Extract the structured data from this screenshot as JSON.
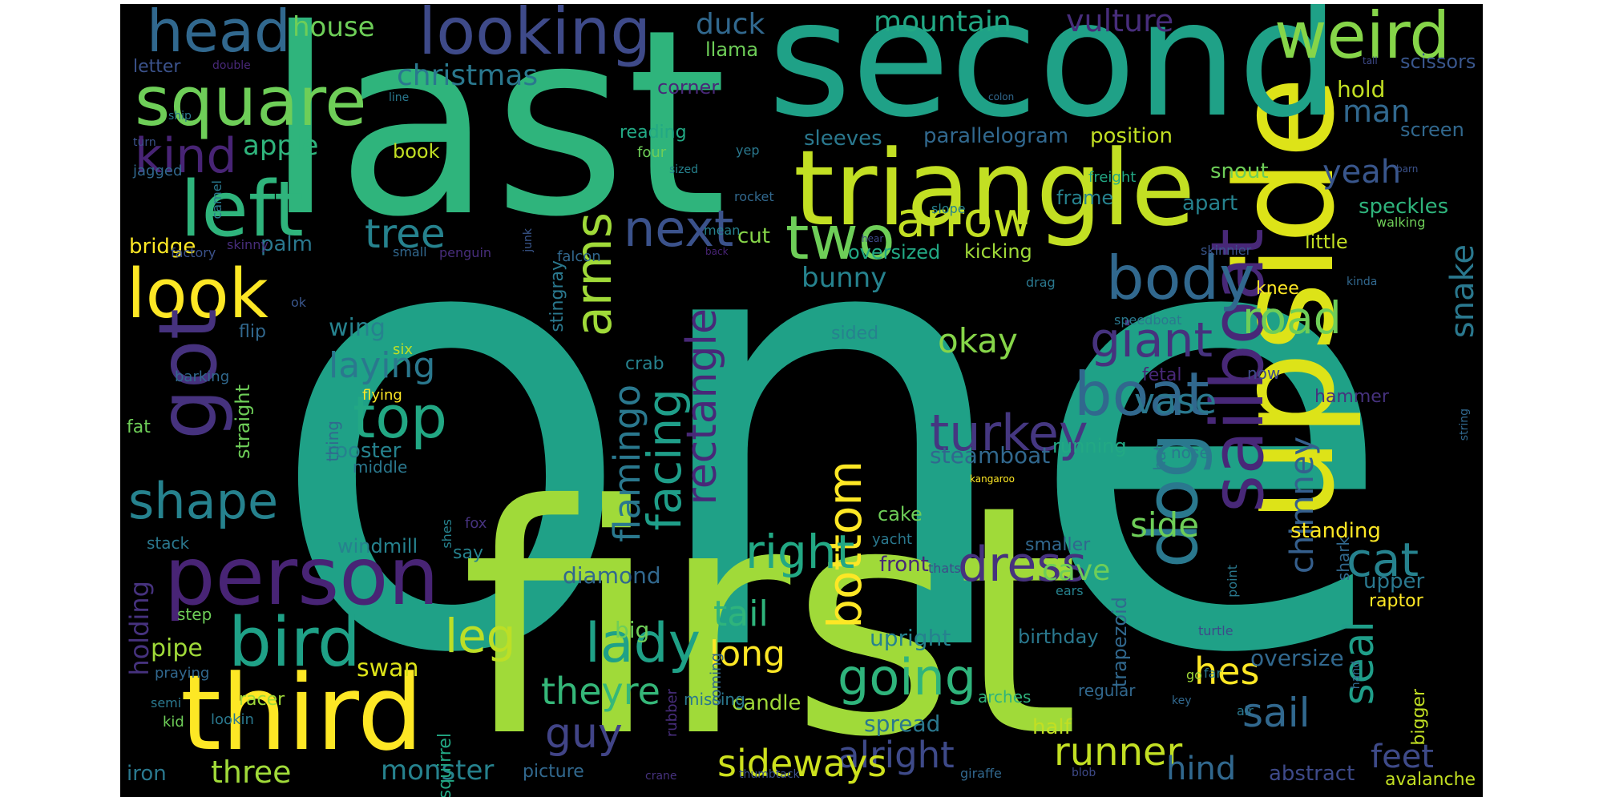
{
  "palette": {
    "background": "#000000",
    "page": "#ffffff",
    "colors": [
      "#fde725",
      "#a0da39",
      "#4ac16d",
      "#1fa187",
      "#277f8e",
      "#365c8d",
      "#46327e",
      "#440154"
    ]
  },
  "words": [
    {
      "text": "one",
      "color": "#1fa187"
    },
    {
      "text": "first",
      "color": "#a0da39"
    },
    {
      "text": "last",
      "color": "#2fb47c"
    },
    {
      "text": "upside",
      "color": "#dde318"
    },
    {
      "text": "second",
      "color": "#1fa187"
    },
    {
      "text": "triangle",
      "color": "#c2df23"
    },
    {
      "text": "third",
      "color": "#fde725"
    },
    {
      "text": "person",
      "color": "#482475"
    },
    {
      "text": "bird",
      "color": "#1fa187"
    },
    {
      "text": "left",
      "color": "#2fb47c"
    },
    {
      "text": "look",
      "color": "#fde725"
    },
    {
      "text": "square",
      "color": "#6ece58"
    },
    {
      "text": "head",
      "color": "#31688e"
    },
    {
      "text": "looking",
      "color": "#3e4a89"
    },
    {
      "text": "weird",
      "color": "#86d549"
    },
    {
      "text": "got",
      "color": "#46327e"
    },
    {
      "text": "dog",
      "color": "#2a788e"
    },
    {
      "text": "sailboat",
      "color": "#482878"
    },
    {
      "text": "boat",
      "color": "#31688e"
    },
    {
      "text": "body",
      "color": "#31688e"
    },
    {
      "text": "two",
      "color": "#6ece58"
    },
    {
      "text": "arrow",
      "color": "#c2df23"
    },
    {
      "text": "next",
      "color": "#3b528b"
    },
    {
      "text": "kind",
      "color": "#482475"
    },
    {
      "text": "shape",
      "color": "#26828e"
    },
    {
      "text": "top",
      "color": "#22a884"
    },
    {
      "text": "turkey",
      "color": "#453781"
    },
    {
      "text": "bottom",
      "color": "#fde725"
    },
    {
      "text": "right",
      "color": "#22a884"
    },
    {
      "text": "facing",
      "color": "#1f9e89"
    },
    {
      "text": "flamingo",
      "color": "#2a788e"
    },
    {
      "text": "rectangle",
      "color": "#482878"
    },
    {
      "text": "arms",
      "color": "#a0da39"
    },
    {
      "text": "dress",
      "color": "#46327e"
    },
    {
      "text": "going",
      "color": "#2fb47c"
    },
    {
      "text": "lady",
      "color": "#1fa187"
    },
    {
      "text": "leg",
      "color": "#bddf26"
    },
    {
      "text": "guy",
      "color": "#414487"
    },
    {
      "text": "cat",
      "color": "#26828e"
    },
    {
      "text": "seal",
      "color": "#1f9e89"
    },
    {
      "text": "chimney",
      "color": "#355f8d"
    },
    {
      "text": "giant",
      "color": "#46327e"
    },
    {
      "text": "road",
      "color": "#6ece58"
    },
    {
      "text": "snake",
      "color": "#2a788e"
    },
    {
      "text": "tree",
      "color": "#26828e"
    },
    {
      "text": "okay",
      "color": "#86d549"
    },
    {
      "text": "laying",
      "color": "#2a788e"
    },
    {
      "text": "runner",
      "color": "#c2df23"
    },
    {
      "text": "alright",
      "color": "#3e4a89"
    },
    {
      "text": "sideways",
      "color": "#cde11d"
    },
    {
      "text": "theyre",
      "color": "#35b779"
    },
    {
      "text": "sail",
      "color": "#31688e"
    },
    {
      "text": "hes",
      "color": "#fde725"
    },
    {
      "text": "long",
      "color": "#fde725"
    },
    {
      "text": "tail",
      "color": "#2fb47c"
    },
    {
      "text": "side",
      "color": "#6ece58"
    },
    {
      "text": "vase",
      "color": "#2a788e"
    },
    {
      "text": "feet",
      "color": "#3e4a89"
    },
    {
      "text": "hind",
      "color": "#31688e"
    },
    {
      "text": "three",
      "color": "#a0da39"
    },
    {
      "text": "monster",
      "color": "#26828e"
    },
    {
      "text": "holding",
      "color": "#46327e"
    },
    {
      "text": "christmas",
      "color": "#2a788e"
    },
    {
      "text": "mountain",
      "color": "#22a884"
    },
    {
      "text": "duck",
      "color": "#31688e"
    },
    {
      "text": "house",
      "color": "#6ece58"
    },
    {
      "text": "vulture",
      "color": "#472d7b"
    },
    {
      "text": "apple",
      "color": "#2fb47c"
    },
    {
      "text": "man",
      "color": "#31688e"
    },
    {
      "text": "yeah",
      "color": "#39568c"
    },
    {
      "text": "cave",
      "color": "#6ece58"
    },
    {
      "text": "swan",
      "color": "#dde318"
    },
    {
      "text": "pipe",
      "color": "#a0da39"
    },
    {
      "text": "bunny",
      "color": "#26828e"
    },
    {
      "text": "wing",
      "color": "#26828e"
    },
    {
      "text": "parallelogram",
      "color": "#31688e"
    },
    {
      "text": "position",
      "color": "#c2df23"
    },
    {
      "text": "sleeves",
      "color": "#2a788e"
    },
    {
      "text": "hold",
      "color": "#c2df23"
    },
    {
      "text": "llama",
      "color": "#6ece58"
    },
    {
      "text": "corner",
      "color": "#482878"
    },
    {
      "text": "letter",
      "color": "#3b528b"
    },
    {
      "text": "book",
      "color": "#c2df23"
    },
    {
      "text": "reading",
      "color": "#22a884"
    },
    {
      "text": "bridge",
      "color": "#fde725"
    },
    {
      "text": "stingray",
      "color": "#2a788e"
    },
    {
      "text": "frame",
      "color": "#26828e"
    },
    {
      "text": "speckles",
      "color": "#2fb47c"
    },
    {
      "text": "apart",
      "color": "#26828e"
    },
    {
      "text": "snout",
      "color": "#6ece58"
    },
    {
      "text": "screen",
      "color": "#31688e"
    },
    {
      "text": "scissors",
      "color": "#39568c"
    },
    {
      "text": "little",
      "color": "#c2df23"
    },
    {
      "text": "kicking",
      "color": "#a0da39"
    },
    {
      "text": "oversized",
      "color": "#22a884"
    },
    {
      "text": "cut",
      "color": "#86d549"
    },
    {
      "text": "palm",
      "color": "#2a788e"
    },
    {
      "text": "steamboat",
      "color": "#31688e"
    },
    {
      "text": "rooster",
      "color": "#26828e"
    },
    {
      "text": "diamond",
      "color": "#31688e"
    },
    {
      "text": "straight",
      "color": "#6ece58"
    },
    {
      "text": "running",
      "color": "#22a884"
    },
    {
      "text": "standing",
      "color": "#fde725"
    },
    {
      "text": "upright",
      "color": "#26828e"
    },
    {
      "text": "oversize",
      "color": "#31688e"
    },
    {
      "text": "birthday",
      "color": "#2a788e"
    },
    {
      "text": "half",
      "color": "#c2df23"
    },
    {
      "text": "spread",
      "color": "#2a788e"
    },
    {
      "text": "candle",
      "color": "#a0da39"
    },
    {
      "text": "big",
      "color": "#6ece58"
    },
    {
      "text": "trapezoid",
      "color": "#31688e"
    },
    {
      "text": "smaller",
      "color": "#31688e"
    },
    {
      "text": "front",
      "color": "#482878"
    },
    {
      "text": "cake",
      "color": "#6ece58"
    },
    {
      "text": "windmill",
      "color": "#26828e"
    },
    {
      "text": "squirrel",
      "color": "#22a884"
    },
    {
      "text": "upper",
      "color": "#2a788e"
    },
    {
      "text": "shark",
      "color": "#31688e"
    },
    {
      "text": "raptor",
      "color": "#fde725"
    },
    {
      "text": "bigger",
      "color": "#c2df23"
    },
    {
      "text": "abstract",
      "color": "#3e4a89"
    },
    {
      "text": "avalanche",
      "color": "#c2df23"
    },
    {
      "text": "iron",
      "color": "#2a788e"
    },
    {
      "text": "picture",
      "color": "#31688e"
    },
    {
      "text": "crab",
      "color": "#26828e"
    },
    {
      "text": "knee",
      "color": "#fde725"
    },
    {
      "text": "sided",
      "color": "#26828e"
    },
    {
      "text": "fetal",
      "color": "#482878"
    },
    {
      "text": "now",
      "color": "#3e4a89"
    },
    {
      "text": "hammer",
      "color": "#46327e"
    },
    {
      "text": "hat",
      "color": "#2a788e"
    },
    {
      "text": "nose",
      "color": "#2a788e"
    },
    {
      "text": "regular",
      "color": "#31688e"
    },
    {
      "text": "arches",
      "color": "#2fb47c"
    },
    {
      "text": "missing",
      "color": "#2a788e"
    },
    {
      "text": "rubber",
      "color": "#472d7b"
    },
    {
      "text": "coming",
      "color": "#31688e"
    },
    {
      "text": "thing",
      "color": "#31688e"
    },
    {
      "text": "middle",
      "color": "#2a788e"
    },
    {
      "text": "flying",
      "color": "#fde725"
    },
    {
      "text": "six",
      "color": "#bddf26"
    },
    {
      "text": "barking",
      "color": "#31688e"
    },
    {
      "text": "flip",
      "color": "#31688e"
    },
    {
      "text": "fat",
      "color": "#6ece58"
    },
    {
      "text": "stack",
      "color": "#2a788e"
    },
    {
      "text": "step",
      "color": "#6ece58"
    },
    {
      "text": "praying",
      "color": "#31688e"
    },
    {
      "text": "racer",
      "color": "#a0da39"
    },
    {
      "text": "semi",
      "color": "#2a788e"
    },
    {
      "text": "kid",
      "color": "#6ece58"
    },
    {
      "text": "say",
      "color": "#26828e"
    },
    {
      "text": "shes",
      "color": "#26828e"
    },
    {
      "text": "fox",
      "color": "#46327e"
    },
    {
      "text": "lookin",
      "color": "#2a788e"
    },
    {
      "text": "factory",
      "color": "#3b528b"
    },
    {
      "text": "skinny",
      "color": "#472d7b"
    },
    {
      "text": "camel",
      "color": "#2a788e"
    },
    {
      "text": "small",
      "color": "#31688e"
    },
    {
      "text": "penguin",
      "color": "#472d7b"
    },
    {
      "text": "ok",
      "color": "#39568c"
    },
    {
      "text": "jagged",
      "color": "#31688e"
    },
    {
      "text": "ship",
      "color": "#2a788e"
    },
    {
      "text": "turn",
      "color": "#3b528b"
    },
    {
      "text": "double",
      "color": "#482878"
    },
    {
      "text": "line",
      "color": "#2a788e"
    },
    {
      "text": "four",
      "color": "#6ece58"
    },
    {
      "text": "sized",
      "color": "#26828e"
    },
    {
      "text": "yep",
      "color": "#2a788e"
    },
    {
      "text": "rocket",
      "color": "#31688e"
    },
    {
      "text": "mean",
      "color": "#26828e"
    },
    {
      "text": "junk",
      "color": "#39568c"
    },
    {
      "text": "falcon",
      "color": "#31688e"
    },
    {
      "text": "back",
      "color": "#482475"
    },
    {
      "text": "hear",
      "color": "#3e4a89"
    },
    {
      "text": "slope",
      "color": "#26828e"
    },
    {
      "text": "freight",
      "color": "#22a884"
    },
    {
      "text": "barn",
      "color": "#3b528b"
    },
    {
      "text": "tall",
      "color": "#3e4a89"
    },
    {
      "text": "colon",
      "color": "#31688e"
    },
    {
      "text": "skinnier",
      "color": "#39568c"
    },
    {
      "text": "drag",
      "color": "#2a788e"
    },
    {
      "text": "speedboat",
      "color": "#2a788e"
    },
    {
      "text": "kinda",
      "color": "#31688e"
    },
    {
      "text": "walking",
      "color": "#6ece58"
    },
    {
      "text": "string",
      "color": "#31688e"
    },
    {
      "text": "kangaroo",
      "color": "#fde725"
    },
    {
      "text": "yacht",
      "color": "#2a788e"
    },
    {
      "text": "thats",
      "color": "#3e4a89"
    },
    {
      "text": "ears",
      "color": "#26828e"
    },
    {
      "text": "point",
      "color": "#2a788e"
    },
    {
      "text": "hand",
      "color": "#31688e"
    },
    {
      "text": "key",
      "color": "#31688e"
    },
    {
      "text": "far",
      "color": "#2a788e"
    },
    {
      "text": "turtle",
      "color": "#3e4a89"
    },
    {
      "text": "go",
      "color": "#a0da39"
    },
    {
      "text": "air",
      "color": "#2a788e"
    },
    {
      "text": "crane",
      "color": "#46327e"
    },
    {
      "text": "thumbtack",
      "color": "#3b528b"
    },
    {
      "text": "giraffe",
      "color": "#31688e"
    },
    {
      "text": "blob",
      "color": "#3e4a89"
    }
  ]
}
